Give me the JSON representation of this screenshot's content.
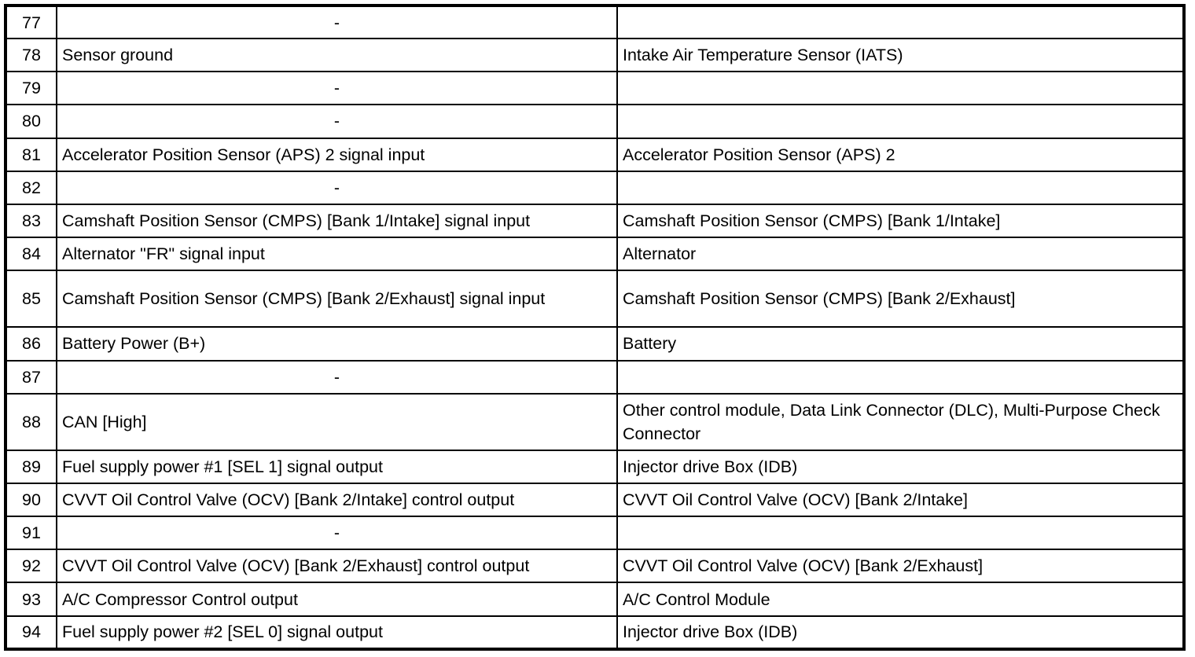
{
  "table": {
    "rows": [
      {
        "pin": "77",
        "description": "-",
        "connected_to": ""
      },
      {
        "pin": "78",
        "description": "Sensor ground",
        "connected_to": "Intake Air Temperature Sensor (IATS)"
      },
      {
        "pin": "79",
        "description": "-",
        "connected_to": ""
      },
      {
        "pin": "80",
        "description": "-",
        "connected_to": ""
      },
      {
        "pin": "81",
        "description": "Accelerator Position Sensor (APS) 2 signal input",
        "connected_to": "Accelerator Position Sensor (APS) 2"
      },
      {
        "pin": "82",
        "description": "-",
        "connected_to": ""
      },
      {
        "pin": "83",
        "description": "Camshaft Position Sensor (CMPS) [Bank 1/Intake] signal input",
        "connected_to": "Camshaft Position Sensor (CMPS) [Bank 1/Intake]"
      },
      {
        "pin": "84",
        "description": "Alternator \"FR\" signal input",
        "connected_to": "Alternator"
      },
      {
        "pin": "85",
        "description": "Camshaft Position Sensor (CMPS) [Bank 2/Exhaust] signal input",
        "connected_to": "Camshaft Position Sensor (CMPS) [Bank 2/Exhaust]"
      },
      {
        "pin": "86",
        "description": "Battery Power (B+)",
        "connected_to": "Battery"
      },
      {
        "pin": "87",
        "description": "-",
        "connected_to": ""
      },
      {
        "pin": "88",
        "description": "CAN [High]",
        "connected_to": "Other control module, Data Link Connector (DLC), Multi-Purpose Check Connector"
      },
      {
        "pin": "89",
        "description": "Fuel supply power #1 [SEL 1] signal output",
        "connected_to": "Injector drive Box (IDB)"
      },
      {
        "pin": "90",
        "description": "CVVT Oil Control Valve (OCV) [Bank 2/Intake] control output",
        "connected_to": "CVVT Oil Control Valve (OCV) [Bank 2/Intake]"
      },
      {
        "pin": "91",
        "description": "-",
        "connected_to": ""
      },
      {
        "pin": "92",
        "description": "CVVT Oil Control Valve (OCV) [Bank 2/Exhaust] control output",
        "connected_to": "CVVT Oil Control Valve (OCV) [Bank 2/Exhaust]"
      },
      {
        "pin": "93",
        "description": "A/C Compressor Control output",
        "connected_to": "A/C Control Module"
      },
      {
        "pin": "94",
        "description": "Fuel supply power #2 [SEL 0] signal output",
        "connected_to": "Injector drive Box (IDB)"
      }
    ]
  }
}
